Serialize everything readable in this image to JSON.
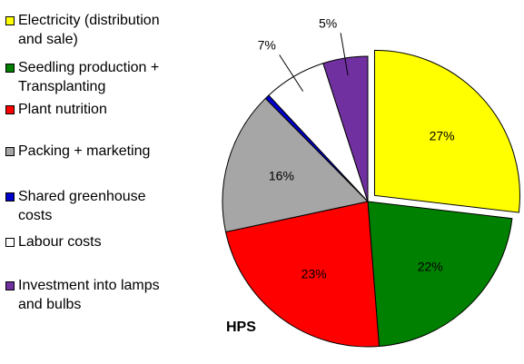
{
  "chart_data": {
    "type": "pie",
    "label": "HPS",
    "slices": [
      {
        "name": "Electricity (distribution\nand sale)",
        "value": 27,
        "label": "27%",
        "color": "#ffff00",
        "exploded": true
      },
      {
        "name": "Seedling production +\nTransplanting",
        "value": 22,
        "label": "22%",
        "color": "#008000"
      },
      {
        "name": "Plant nutrition",
        "value": 23,
        "label": "23%",
        "color": "#ff0000"
      },
      {
        "name": "Packing + marketing",
        "value": 16,
        "label": "16%",
        "color": "#a6a6a6"
      },
      {
        "name": "Shared greenhouse\ncosts",
        "value": 0.5,
        "label": "",
        "color": "#0000cc"
      },
      {
        "name": "Labour costs",
        "value": 7,
        "label": "7%",
        "color": "#ffffff"
      },
      {
        "name": "Investment into lamps\nand bulbs",
        "value": 5,
        "label": "5%",
        "color": "#7030a0"
      }
    ],
    "legend_position": "left"
  }
}
